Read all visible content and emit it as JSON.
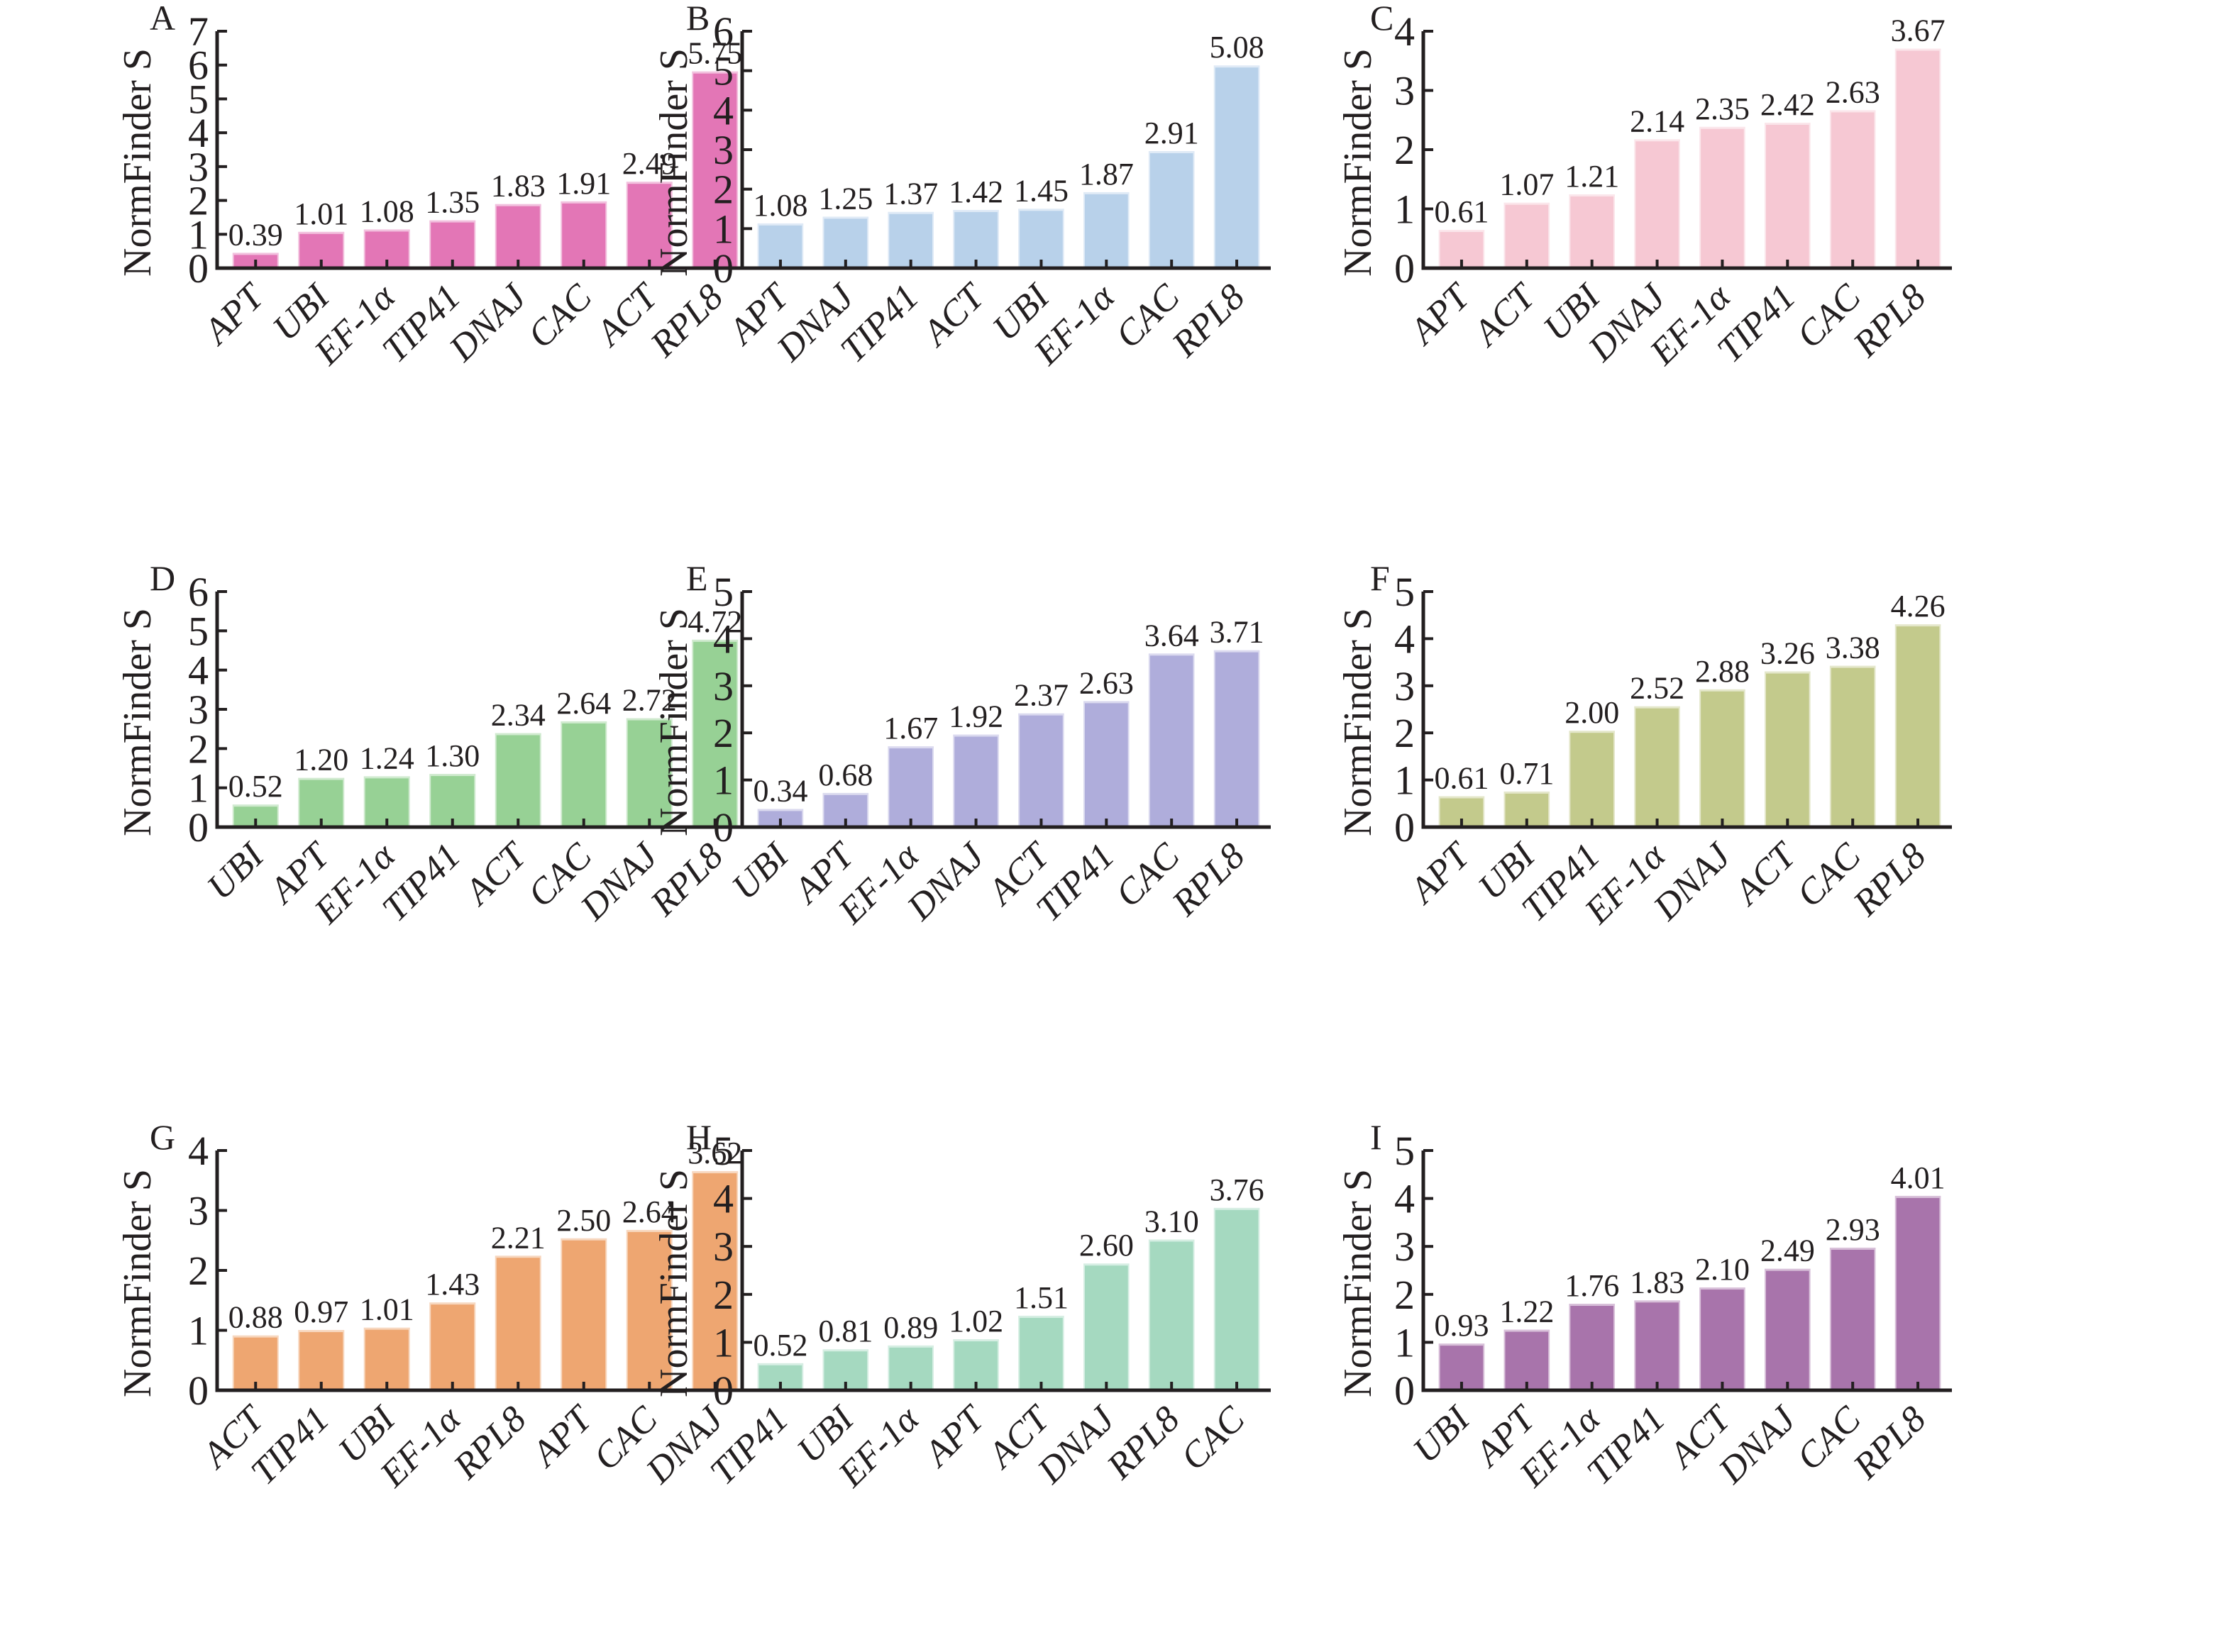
{
  "figure": {
    "ylabel": "NormFinder S"
  },
  "chart_data": [
    {
      "panel": "A",
      "type": "bar",
      "color": "#e376b6",
      "categories": [
        "APT",
        "UBI",
        "EF-1α",
        "TIP41",
        "DNAJ",
        "CAC",
        "ACT",
        "RPL8"
      ],
      "values": [
        0.39,
        1.01,
        1.08,
        1.35,
        1.83,
        1.91,
        2.49,
        5.75
      ],
      "labels": [
        "0.39",
        "1.01",
        "1.08",
        "1.35",
        "1.83",
        "1.91",
        "2.49",
        "5.75"
      ],
      "ylabel": "NormFinder S",
      "ylim": [
        0,
        7
      ],
      "yticks": [
        0,
        1,
        2,
        3,
        4,
        5,
        6,
        7
      ],
      "grid": false
    },
    {
      "panel": "B",
      "type": "bar",
      "color": "#b8d1ea",
      "categories": [
        "APT",
        "DNAJ",
        "TIP41",
        "ACT",
        "UBI",
        "EF-1α",
        "CAC",
        "RPL8"
      ],
      "values": [
        1.08,
        1.25,
        1.37,
        1.42,
        1.45,
        1.87,
        2.91,
        5.08
      ],
      "labels": [
        "1.08",
        "1.25",
        "1.37",
        "1.42",
        "1.45",
        "1.87",
        "2.91",
        "5.08"
      ],
      "ylabel": "NormFinder S",
      "ylim": [
        0,
        6
      ],
      "yticks": [
        0,
        1,
        2,
        3,
        4,
        5,
        6
      ],
      "grid": false
    },
    {
      "panel": "C",
      "type": "bar",
      "color": "#f6c8d3",
      "categories": [
        "APT",
        "ACT",
        "UBI",
        "DNAJ",
        "EF-1α",
        "TIP41",
        "CAC",
        "RPL8"
      ],
      "values": [
        0.61,
        1.07,
        1.21,
        2.14,
        2.35,
        2.42,
        2.63,
        3.67
      ],
      "labels": [
        "0.61",
        "1.07",
        "1.21",
        "2.14",
        "2.35",
        "2.42",
        "2.63",
        "3.67"
      ],
      "ylabel": "NormFinder S",
      "ylim": [
        0,
        4
      ],
      "yticks": [
        0,
        1,
        2,
        3,
        4
      ],
      "grid": false
    },
    {
      "panel": "D",
      "type": "bar",
      "color": "#97d195",
      "categories": [
        "UBI",
        "APT",
        "EF-1α",
        "TIP41",
        "ACT",
        "CAC",
        "DNAJ",
        "RPL8"
      ],
      "values": [
        0.52,
        1.2,
        1.24,
        1.3,
        2.34,
        2.64,
        2.72,
        4.72
      ],
      "labels": [
        "0.52",
        "1.20",
        "1.24",
        "1.30",
        "2.34",
        "2.64",
        "2.72",
        "4.72"
      ],
      "ylabel": "NormFinder S",
      "ylim": [
        0,
        6
      ],
      "yticks": [
        0,
        1,
        2,
        3,
        4,
        5,
        6
      ],
      "grid": false
    },
    {
      "panel": "E",
      "type": "bar",
      "color": "#afaddb",
      "categories": [
        "UBI",
        "APT",
        "EF-1α",
        "DNAJ",
        "ACT",
        "TIP41",
        "CAC",
        "RPL8"
      ],
      "values": [
        0.34,
        0.68,
        1.67,
        1.92,
        2.37,
        2.63,
        3.64,
        3.71
      ],
      "labels": [
        "0.34",
        "0.68",
        "1.67",
        "1.92",
        "2.37",
        "2.63",
        "3.64",
        "3.71"
      ],
      "ylabel": "NormFinder S",
      "ylim": [
        0,
        5
      ],
      "yticks": [
        0,
        1,
        2,
        3,
        4,
        5
      ],
      "grid": false
    },
    {
      "panel": "F",
      "type": "bar",
      "color": "#c3ca8c",
      "categories": [
        "APT",
        "UBI",
        "TIP41",
        "EF-1α",
        "DNAJ",
        "ACT",
        "CAC",
        "RPL8"
      ],
      "values": [
        0.61,
        0.71,
        2.0,
        2.52,
        2.88,
        3.26,
        3.38,
        4.26
      ],
      "labels": [
        "0.61",
        "0.71",
        "2.00",
        "2.52",
        "2.88",
        "3.26",
        "3.38",
        "4.26"
      ],
      "ylabel": "NormFinder S",
      "ylim": [
        0,
        5
      ],
      "yticks": [
        0,
        1,
        2,
        3,
        4,
        5
      ],
      "grid": false
    },
    {
      "panel": "G",
      "type": "bar",
      "color": "#eea671",
      "categories": [
        "ACT",
        "TIP41",
        "UBI",
        "EF-1α",
        "RPL8",
        "APT",
        "CAC",
        "DNAJ"
      ],
      "values": [
        0.88,
        0.97,
        1.01,
        1.43,
        2.21,
        2.5,
        2.64,
        3.62
      ],
      "labels": [
        "0.88",
        "0.97",
        "1.01",
        "1.43",
        "2.21",
        "2.50",
        "2.64",
        "3.62"
      ],
      "ylabel": "NormFinder S",
      "ylim": [
        0,
        4
      ],
      "yticks": [
        0,
        1,
        2,
        3,
        4
      ],
      "grid": false
    },
    {
      "panel": "H",
      "type": "bar",
      "color": "#a5d9c0",
      "categories": [
        "TIP41",
        "UBI",
        "EF-1α",
        "APT",
        "ACT",
        "DNAJ",
        "RPL8",
        "CAC"
      ],
      "values": [
        0.52,
        0.81,
        0.89,
        1.02,
        1.51,
        2.6,
        3.1,
        3.76
      ],
      "labels": [
        "0.52",
        "0.81",
        "0.89",
        "1.02",
        "1.51",
        "2.60",
        "3.10",
        "3.76"
      ],
      "ylabel": "NormFinder S",
      "ylim": [
        0,
        5
      ],
      "yticks": [
        0,
        1,
        2,
        3,
        4,
        5
      ],
      "grid": false
    },
    {
      "panel": "I",
      "type": "bar",
      "color": "#a874ab",
      "categories": [
        "UBI",
        "APT",
        "EF-1α",
        "TIP41",
        "ACT",
        "DNAJ",
        "CAC",
        "RPL8"
      ],
      "values": [
        0.93,
        1.22,
        1.76,
        1.83,
        2.1,
        2.49,
        2.93,
        4.01
      ],
      "labels": [
        "0.93",
        "1.22",
        "1.76",
        "1.83",
        "2.10",
        "2.49",
        "2.93",
        "4.01"
      ],
      "ylabel": "NormFinder S",
      "ylim": [
        0,
        5
      ],
      "yticks": [
        0,
        1,
        2,
        3,
        4,
        5
      ],
      "grid": false
    }
  ]
}
